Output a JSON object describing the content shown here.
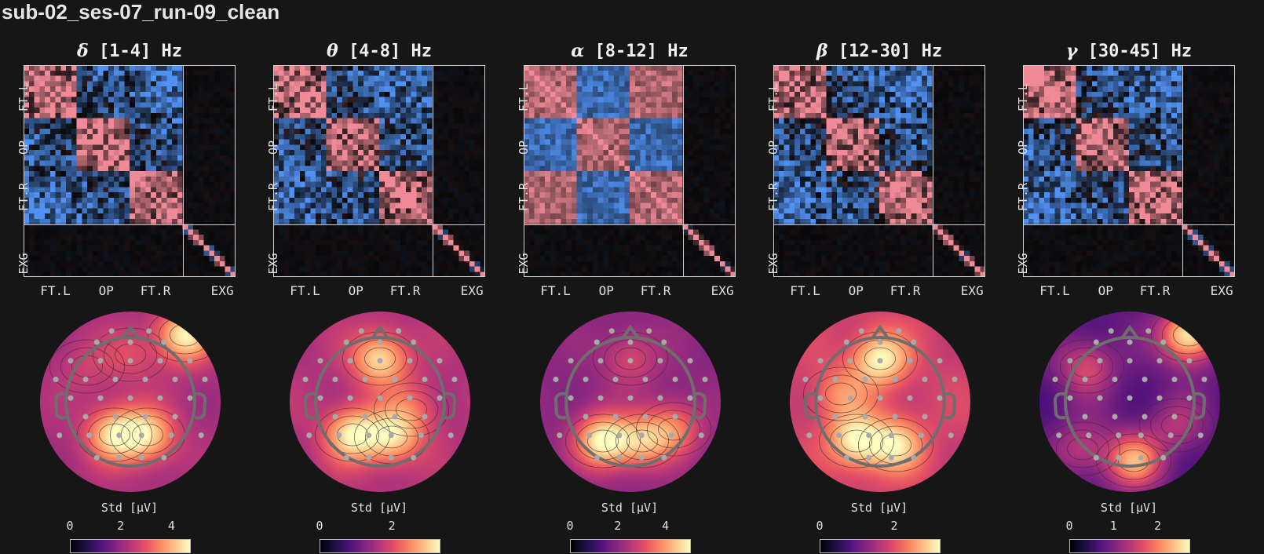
{
  "title": "sub-02_ses-07_run-09_clean",
  "colors": {
    "background": "#161616",
    "positive": "#f08a92",
    "negative": "#4f8ef0",
    "sensor": "#a9a9a9",
    "head_outline": "#6e6e6e"
  },
  "chart_data": [
    {
      "type": "heatmap",
      "band_symbol": "δ",
      "band_range": "[1-4] Hz",
      "row_tick_labels": [
        "FT.L",
        "OP",
        "FT.R",
        "EXG"
      ],
      "col_tick_labels": [
        "FT.L",
        "OP",
        "FT.R",
        "EXG"
      ],
      "n_eeg_channels": 30,
      "n_exg_channels": 10,
      "colorbar": {
        "label": "Std [μV]",
        "ticks": [
          "0",
          "2",
          "4"
        ],
        "tick_values": [
          0,
          2,
          4
        ],
        "range": [
          0,
          4.7
        ],
        "colormap": "magma"
      },
      "topomap": {
        "centers": [
          [
            -0.2,
            -0.42,
            4.4
          ],
          [
            0.22,
            -0.42,
            4.2
          ],
          [
            0.7,
            0.85,
            4.6
          ],
          [
            0.0,
            0.6,
            2.8
          ],
          [
            -0.55,
            0.45,
            2.6
          ]
        ],
        "base": 2.2
      }
    },
    {
      "type": "heatmap",
      "band_symbol": "θ",
      "band_range": "[4-8] Hz",
      "row_tick_labels": [
        "FT.L",
        "OP",
        "FT.R",
        "EXG"
      ],
      "col_tick_labels": [
        "FT.L",
        "OP",
        "FT.R",
        "EXG"
      ],
      "n_eeg_channels": 30,
      "n_exg_channels": 10,
      "colorbar": {
        "label": "Std [μV]",
        "ticks": [
          "0",
          "2"
        ],
        "tick_values": [
          0,
          2
        ],
        "range": [
          0,
          3.3
        ],
        "colormap": "magma"
      },
      "topomap": {
        "centers": [
          [
            -0.35,
            -0.42,
            3.2
          ],
          [
            0.15,
            -0.45,
            3.0
          ],
          [
            0.0,
            0.55,
            3.1
          ],
          [
            0.4,
            -0.1,
            2.2
          ]
        ],
        "base": 1.6
      }
    },
    {
      "type": "heatmap",
      "band_symbol": "α",
      "band_range": "[8-12] Hz",
      "row_tick_labels": [
        "FT.L",
        "OP",
        "FT.R",
        "EXG"
      ],
      "col_tick_labels": [
        "FT.L",
        "OP",
        "FT.R",
        "EXG"
      ],
      "n_eeg_channels": 30,
      "n_exg_channels": 10,
      "colorbar": {
        "label": "Std [μV]",
        "ticks": [
          "0",
          "2",
          "4"
        ],
        "tick_values": [
          0,
          2,
          4
        ],
        "range": [
          0,
          5.0
        ],
        "colormap": "magma"
      },
      "topomap": {
        "centers": [
          [
            -0.35,
            -0.5,
            5.0
          ],
          [
            0.15,
            -0.5,
            4.0
          ],
          [
            0.55,
            -0.35,
            3.6
          ],
          [
            0.0,
            0.55,
            2.9
          ]
        ],
        "base": 2.0
      }
    },
    {
      "type": "heatmap",
      "band_symbol": "β",
      "band_range": "[12-30] Hz",
      "row_tick_labels": [
        "FT.L",
        "OP",
        "FT.R",
        "EXG"
      ],
      "col_tick_labels": [
        "FT.L",
        "OP",
        "FT.R",
        "EXG"
      ],
      "n_eeg_channels": 30,
      "n_exg_channels": 10,
      "colorbar": {
        "label": "Std [μV]",
        "ticks": [
          "0",
          "2"
        ],
        "tick_values": [
          0,
          2
        ],
        "range": [
          0,
          3.2
        ],
        "colormap": "magma"
      },
      "topomap": {
        "centers": [
          [
            -0.3,
            -0.5,
            3.2
          ],
          [
            0.2,
            -0.55,
            3.0
          ],
          [
            0.0,
            0.55,
            3.2
          ],
          [
            -0.5,
            0.1,
            2.4
          ]
        ],
        "base": 1.8
      }
    },
    {
      "type": "heatmap",
      "band_symbol": "γ",
      "band_range": "[30-45] Hz",
      "row_tick_labels": [
        "FT.L",
        "OP",
        "FT.R",
        "EXG"
      ],
      "col_tick_labels": [
        "FT.L",
        "OP",
        "FT.R",
        "EXG"
      ],
      "n_eeg_channels": 30,
      "n_exg_channels": 10,
      "colorbar": {
        "label": "Std [μV]",
        "ticks": [
          "0",
          "1",
          "2"
        ],
        "tick_values": [
          0,
          1,
          2
        ],
        "range": [
          0,
          2.7
        ],
        "colormap": "magma"
      },
      "topomap": {
        "centers": [
          [
            0.75,
            0.85,
            2.7
          ],
          [
            -0.55,
            0.45,
            1.6
          ],
          [
            0.05,
            -0.75,
            2.2
          ],
          [
            -0.6,
            -0.6,
            1.4
          ],
          [
            0.6,
            -0.3,
            1.3
          ]
        ],
        "base": 0.8
      }
    }
  ]
}
